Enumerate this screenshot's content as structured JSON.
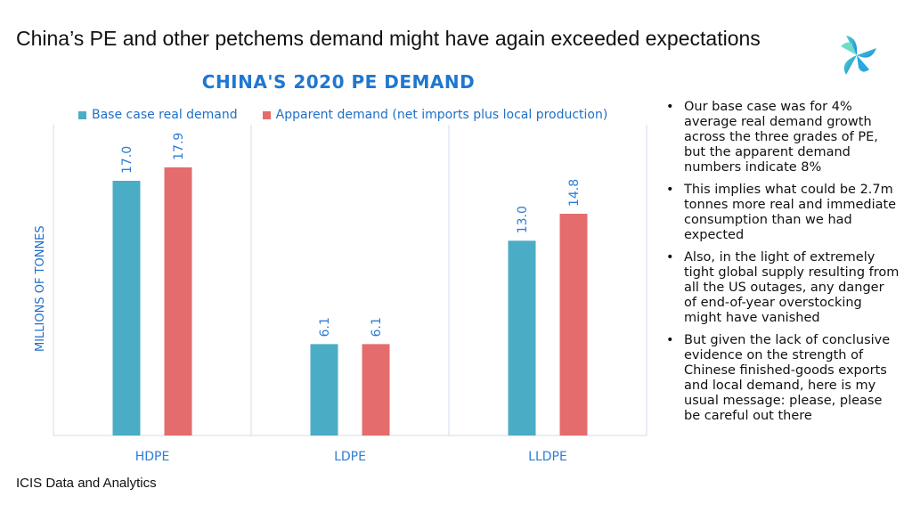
{
  "slide": {
    "title": "China’s PE and other petchems demand might have again exceeded expectations",
    "source": "ICIS Data and Analytics",
    "logo_icon": "icis-logo-icon"
  },
  "bullets": [
    "Our base case was for 4% average real demand growth across the three grades of PE, but the apparent demand numbers indicate 8%",
    "This implies what could be 2.7m tonnes more real and immediate consumption than we had expected",
    "Also, in the light of extremely tight global supply resulting from all the US outages, any danger of end-of-year overstocking might have vanished",
    "But given the lack of conclusive evidence on the strength of Chinese finished-goods exports and local demand, here is my usual message: please, please be careful out there"
  ],
  "chart_data": {
    "type": "bar",
    "title": "CHINA'S 2020 PE DEMAND",
    "xlabel": "",
    "ylabel": "MILLIONS OF TONNES",
    "categories": [
      "HDPE",
      "LDPE",
      "LLDPE"
    ],
    "series": [
      {
        "name": "Base case real demand",
        "values": [
          17.0,
          6.1,
          13.0
        ],
        "labels": [
          "17.0",
          "6.1",
          "13.0"
        ],
        "color": "#4BACC6"
      },
      {
        "name": "Apparent demand (net imports plus local production)",
        "values": [
          17.9,
          6.1,
          14.8
        ],
        "labels": [
          "17.9",
          "6.1",
          "14.8"
        ],
        "color": "#E46C6C"
      }
    ],
    "ylim": [
      0,
      20
    ],
    "grid": false,
    "legend_position": "top-left",
    "label_color": "#2E7DD6",
    "axis_color": "#D0DCE8"
  }
}
